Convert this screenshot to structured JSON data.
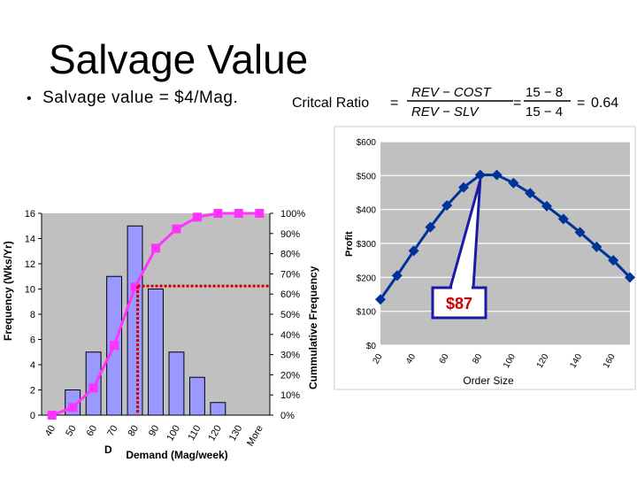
{
  "slide": {
    "title": "Salvage Value",
    "bullet": "Salvage value = $4/Mag."
  },
  "formula": {
    "lhs": "Critcal Ratio",
    "num_sym": "REV − COST",
    "den_sym": "REV − SLV",
    "num_val": "15 − 8",
    "den_val": "15 − 4",
    "result": "0.64",
    "eq1": "=",
    "eq2": "=",
    "eq3": "= "
  },
  "chart_data": [
    {
      "type": "bar",
      "name": "demand-histogram",
      "categories": [
        "40",
        "50",
        "60",
        "70",
        "80",
        "90",
        "100",
        "110",
        "120",
        "130",
        "More"
      ],
      "values": [
        0,
        2,
        5,
        11,
        15,
        10,
        5,
        3,
        1,
        0,
        0
      ],
      "ylabel": "Frequency (Wks/Yr)",
      "y2label": "Cummulative Frequency",
      "xlabel": "Demand (Mag/week)",
      "xlabel_partial": "D",
      "ylim": [
        0,
        16
      ],
      "yticks": [
        "0",
        "2",
        "4",
        "6",
        "8",
        "10",
        "12",
        "14",
        "16"
      ],
      "y2lim": [
        0,
        100
      ],
      "y2ticks": [
        "0%",
        "10%",
        "20%",
        "30%",
        "40%",
        "50%",
        "60%",
        "70%",
        "80%",
        "90%",
        "100%"
      ],
      "cumulative_line": [
        0,
        3.8,
        13.5,
        34.6,
        63.5,
        82.7,
        92.3,
        98.1,
        100,
        100,
        100
      ],
      "critical_marker": {
        "category": "80",
        "cumulative_pct": 64
      },
      "colors": {
        "bar": "#9999ff",
        "line": "#ff33ff",
        "plot_bg": "#c0c0c0",
        "marker": "#cc0000"
      }
    },
    {
      "type": "line",
      "name": "profit-curve",
      "x": [
        20,
        30,
        40,
        50,
        60,
        70,
        80,
        90,
        100,
        110,
        120,
        130,
        140,
        150,
        160,
        170
      ],
      "y": [
        135,
        205,
        278,
        348,
        412,
        465,
        502,
        502,
        478,
        448,
        410,
        372,
        333,
        290,
        250,
        200
      ],
      "xticks": [
        "20",
        "40",
        "60",
        "80",
        "100",
        "120",
        "140",
        "160"
      ],
      "ylabel": "Profit",
      "xlabel": "Order Size",
      "ylim": [
        0,
        600
      ],
      "yticks": [
        "$0",
        "$100",
        "$200",
        "$300",
        "$400",
        "$500",
        "$600"
      ],
      "callout": "$87",
      "colors": {
        "line": "#003399",
        "plot_bg": "#c0c0c0",
        "callout_text": "#cc0000",
        "callout_border": "#1a1aa6"
      }
    }
  ]
}
